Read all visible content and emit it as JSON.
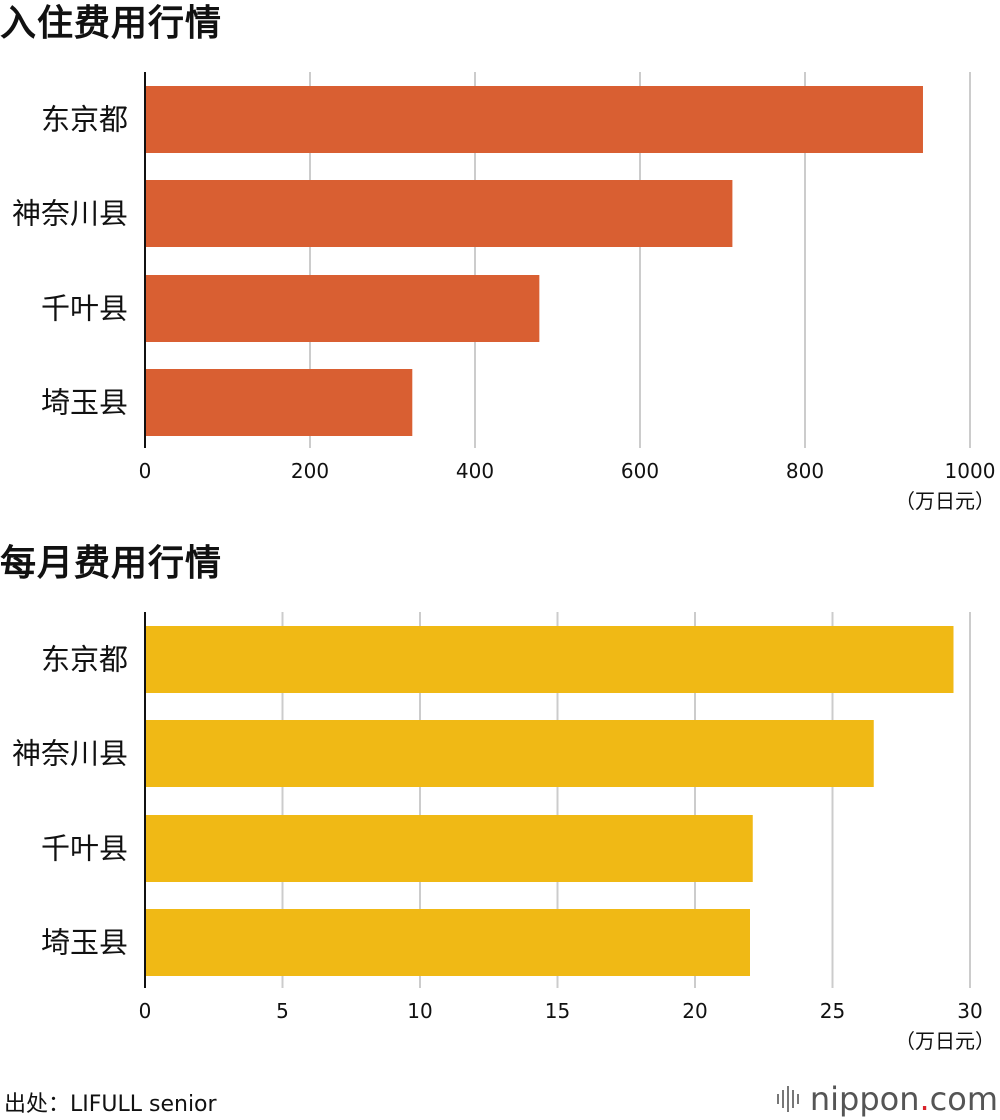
{
  "charts": [
    {
      "title": "入住费用行情",
      "bar_color": "#d95f32",
      "unit": "（万日元）",
      "ticks": [
        "0",
        "200",
        "400",
        "600",
        "800",
        "1000"
      ]
    },
    {
      "title": "每月费用行情",
      "bar_color": "#f0b915",
      "unit": "（万日元）",
      "ticks": [
        "0",
        "5",
        "10",
        "15",
        "20",
        "25",
        "30"
      ]
    }
  ],
  "chart_data": [
    {
      "type": "bar",
      "orientation": "horizontal",
      "title": "入住费用行情",
      "categories": [
        "东京都",
        "神奈川县",
        "千叶县",
        "埼玉县"
      ],
      "values": [
        943,
        712,
        478,
        324
      ],
      "xlabel": "（万日元）",
      "xlim": [
        0,
        1000
      ],
      "grid": true
    },
    {
      "type": "bar",
      "orientation": "horizontal",
      "title": "每月费用行情",
      "categories": [
        "东京都",
        "神奈川县",
        "千叶县",
        "埼玉县"
      ],
      "values": [
        29.4,
        26.5,
        22.1,
        22.0
      ],
      "xlabel": "（万日元）",
      "xlim": [
        0,
        30
      ],
      "grid": true
    }
  ],
  "footer": {
    "source": "出处：LIFULL senior",
    "brand_main": "nippon",
    "brand_dot": ".",
    "brand_tail": "com",
    "brand_icon": "sound-bars-icon"
  }
}
